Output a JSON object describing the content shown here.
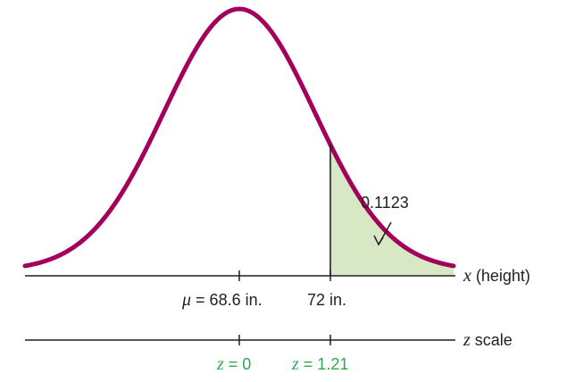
{
  "diagram": {
    "area_label": "0.1123",
    "x_axis": {
      "label_var": "x",
      "label_rest": " (height)",
      "mean_symbol": "μ",
      "mean_text": " = 68.6 in.",
      "value_text": "72 in."
    },
    "z_axis": {
      "label_var": "z",
      "label_rest": " scale",
      "z0_var": "z",
      "z0_text": " = 0",
      "z1_var": "z",
      "z1_text": " = 1.21"
    },
    "colors": {
      "curve": "#a3005c",
      "shade": "#d8e8c4",
      "axis": "#231f20",
      "z_text": "#2fa84f"
    }
  },
  "chart_data": {
    "type": "area",
    "distribution": "normal",
    "mean": 68.6,
    "x_value": 72,
    "z_value": 1.21,
    "shaded_region": "right tail (x > 72)",
    "shaded_area": 0.1123
  }
}
